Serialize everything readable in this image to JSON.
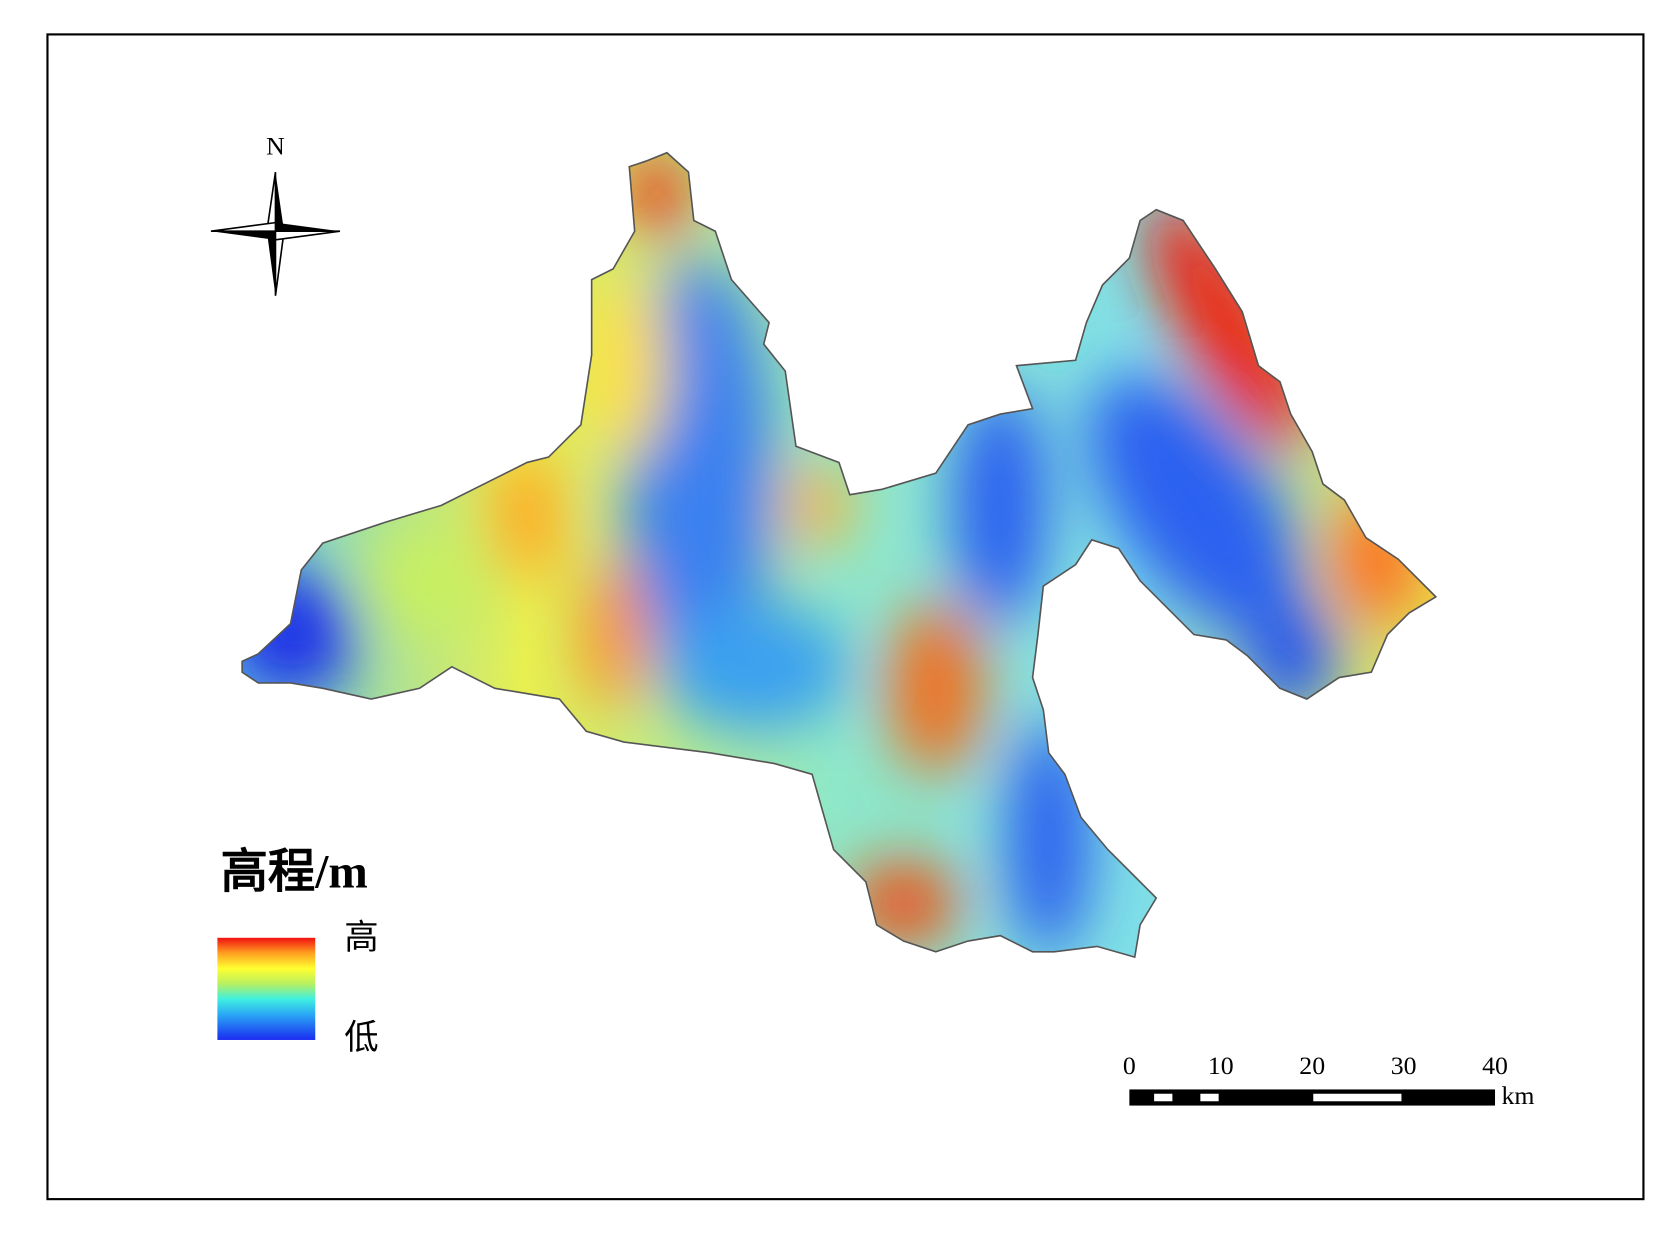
{
  "north": "N",
  "legend": {
    "title": "高程/m",
    "high": "高",
    "low": "低"
  },
  "scale_bar": {
    "ticks": [
      0,
      10,
      20,
      30,
      40
    ],
    "unit": "km"
  }
}
